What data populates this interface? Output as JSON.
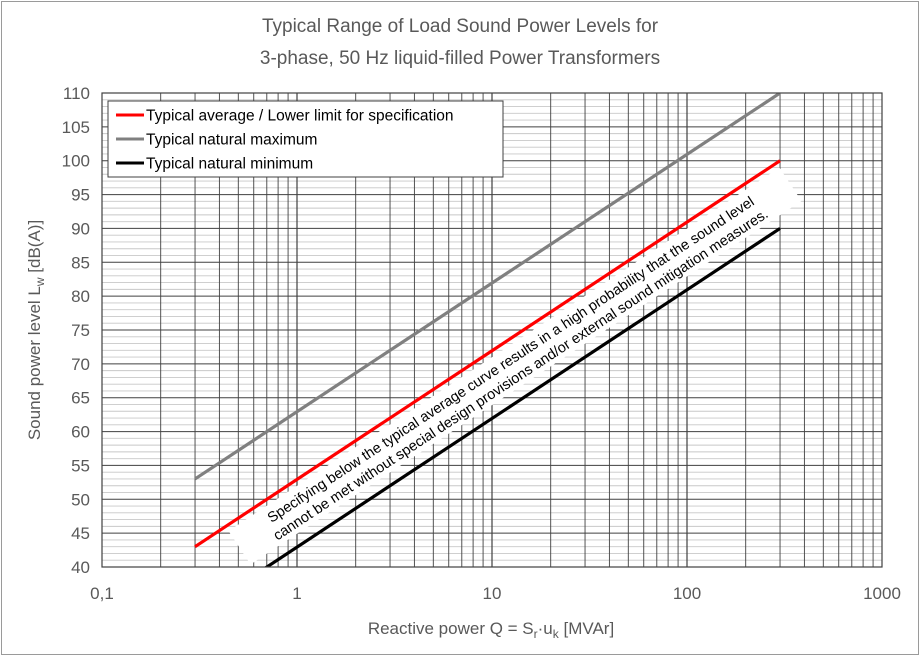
{
  "chart_data": {
    "type": "line",
    "title": [
      "Typical Range of Load Sound Power Levels for",
      "3-phase, 50 Hz liquid-filled Power Transformers"
    ],
    "xlabel": {
      "main": "Reactive power Q = S",
      "sub1": "r",
      "mid": "·u",
      "sub2": "k",
      "end": " [MVAr]"
    },
    "ylabel": {
      "main": "Sound power level L",
      "sub": "w",
      "end": " [dB(A)]"
    },
    "x_scale": "log",
    "xlim": [
      0.1,
      1000
    ],
    "ylim": [
      40,
      110
    ],
    "x_ticks": [
      0.1,
      1,
      10,
      100,
      1000
    ],
    "x_tick_labels": [
      "0,1",
      "1",
      "10",
      "100",
      "1000"
    ],
    "y_ticks": [
      40,
      45,
      50,
      55,
      60,
      65,
      70,
      75,
      80,
      85,
      90,
      95,
      100,
      105,
      110
    ],
    "y_tick_labels": [
      "40",
      "45",
      "50",
      "55",
      "60",
      "65",
      "70",
      "75",
      "80",
      "85",
      "90",
      "95",
      "100",
      "105",
      "110"
    ],
    "grid": true,
    "legend_position": "top-left",
    "series": [
      {
        "name": "Typical average / Lower limit for specification",
        "color": "#ff0000",
        "x": [
          0.3,
          300
        ],
        "y": [
          43,
          100
        ]
      },
      {
        "name": "Typical natural maximum",
        "color": "#808080",
        "x": [
          0.3,
          300
        ],
        "y": [
          53,
          110
        ]
      },
      {
        "name": "Typical natural minimum",
        "color": "#000000",
        "x": [
          0.3,
          300
        ],
        "y": [
          33,
          90
        ]
      }
    ],
    "annotation": [
      "Specifying below the typical average curve results in a high probability that the sound level",
      "cannot be met without special design provisions and/or external sound mitigation measures."
    ]
  }
}
